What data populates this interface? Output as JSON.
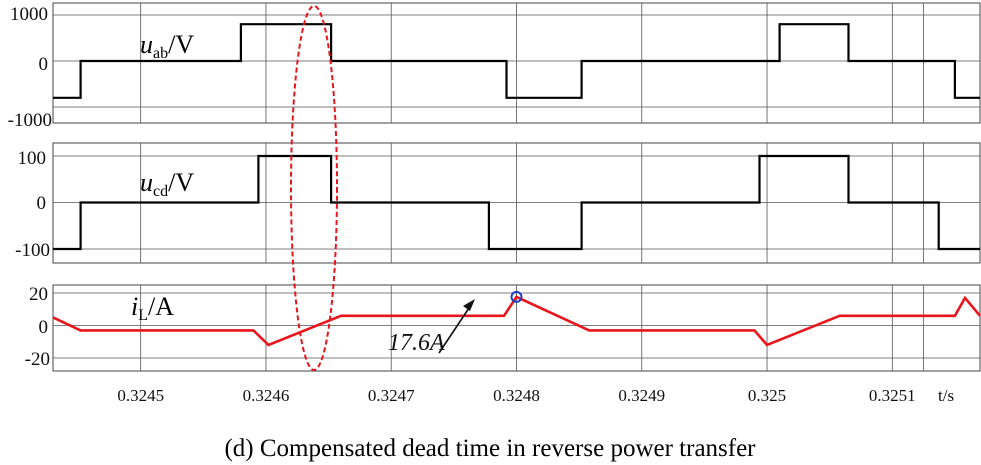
{
  "caption": "(d) Compensated dead time in reverse power transfer",
  "chart_data": [
    {
      "type": "line",
      "panel": "uab",
      "label_sym": "u",
      "label_sub": "ab",
      "label_unit": "/V",
      "yticks": [
        "1000",
        "0",
        "-1000"
      ],
      "ylim": [
        -1000,
        1000
      ],
      "xlim": [
        0.32443,
        0.32517
      ],
      "grid": true,
      "color": "#000000",
      "series": [
        {
          "x": [
            0.32443,
            0.324452,
            0.324452,
            0.32458,
            0.32458,
            0.324652,
            0.324652,
            0.324792,
            0.324792,
            0.324852,
            0.324852,
            0.32501,
            0.32501,
            0.325065,
            0.325065,
            0.32515,
            0.32515,
            0.32517
          ],
          "y": [
            -800,
            -800,
            0,
            0,
            800,
            800,
            0,
            0,
            -800,
            -800,
            0,
            0,
            800,
            800,
            0,
            0,
            -800,
            -800
          ]
        }
      ]
    },
    {
      "type": "line",
      "panel": "ucd",
      "label_sym": "u",
      "label_sub": "cd",
      "label_unit": "/V",
      "yticks": [
        "100",
        "0",
        "-100"
      ],
      "ylim": [
        -100,
        100
      ],
      "xlim": [
        0.32443,
        0.32517
      ],
      "grid": true,
      "color": "#000000",
      "series": [
        {
          "x": [
            0.32443,
            0.324452,
            0.324452,
            0.324594,
            0.324594,
            0.324652,
            0.324652,
            0.324778,
            0.324778,
            0.324852,
            0.324852,
            0.324994,
            0.324994,
            0.325065,
            0.325065,
            0.325137,
            0.325137,
            0.32517
          ],
          "y": [
            -100,
            -100,
            0,
            0,
            100,
            100,
            0,
            0,
            -100,
            -100,
            0,
            0,
            100,
            100,
            0,
            0,
            -100,
            -100
          ]
        }
      ]
    },
    {
      "type": "line",
      "panel": "iL",
      "label_sym": "i",
      "label_sub": "L",
      "label_unit": "/A",
      "yticks": [
        "20",
        "0",
        "-20"
      ],
      "ylim": [
        -20,
        20
      ],
      "xlim": [
        0.32443,
        0.32517
      ],
      "grid": true,
      "color": "#e8161c",
      "annotation": {
        "text": "17.6A",
        "x": 0.3248,
        "y": 17.6
      },
      "series": [
        {
          "x": [
            0.32443,
            0.324452,
            0.32459,
            0.324602,
            0.32466,
            0.32479,
            0.3248,
            0.324858,
            0.32499,
            0.325,
            0.325058,
            0.32515,
            0.325158,
            0.32517
          ],
          "y": [
            5,
            -3,
            -3,
            -12,
            6,
            6,
            17.6,
            -3,
            -3,
            -12,
            6,
            6,
            17,
            6
          ]
        }
      ]
    }
  ],
  "x_axis": {
    "ticks": [
      "0.3245",
      "0.3246",
      "0.3247",
      "0.3248",
      "0.3249",
      "0.325",
      "0.3251"
    ],
    "tick_values": [
      0.3245,
      0.3246,
      0.3247,
      0.3248,
      0.3249,
      0.325,
      0.3251
    ],
    "unit_label": "t/s"
  }
}
